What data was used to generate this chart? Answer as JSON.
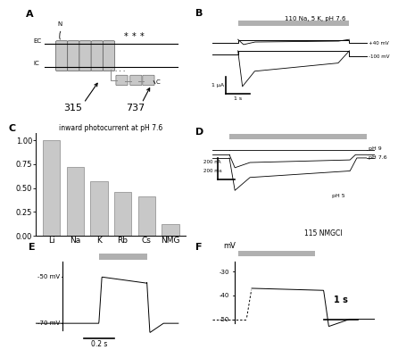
{
  "bar_categories": [
    "Li",
    "Na",
    "K",
    "Rb",
    "Cs",
    "NMG"
  ],
  "bar_values": [
    1.0,
    0.72,
    0.57,
    0.46,
    0.41,
    0.12
  ],
  "bar_color": "#c8c8c8",
  "bar_title": "inward photocurrent at pH 7.6",
  "bar_yticks": [
    0.0,
    0.25,
    0.5,
    0.75,
    1.0
  ],
  "bg_color": "#ffffff",
  "light_bar_color": "#b0b0b0",
  "panel_B_title": "110 Na, 5 K, pH 7.6",
  "panel_B_label1": "+40 mV",
  "panel_B_label2": "-100 mV",
  "panel_B_scalebar_y": "1 μA",
  "panel_B_scalebar_x": "1 s",
  "panel_D_title": "115 NMGCl",
  "panel_D_label1": "pH 9",
  "panel_D_label2": "pH 7.6",
  "panel_D_label3": "pH 5",
  "panel_D_scalebar_y": "200 nA",
  "panel_D_scalebar_x": "200 ms",
  "panel_E_label1": "-50 mV",
  "panel_E_label2": "-70 mV",
  "panel_E_scalebar": "0.2 s",
  "panel_F_ylabel": "mV",
  "panel_F_scalebar": "1 s"
}
